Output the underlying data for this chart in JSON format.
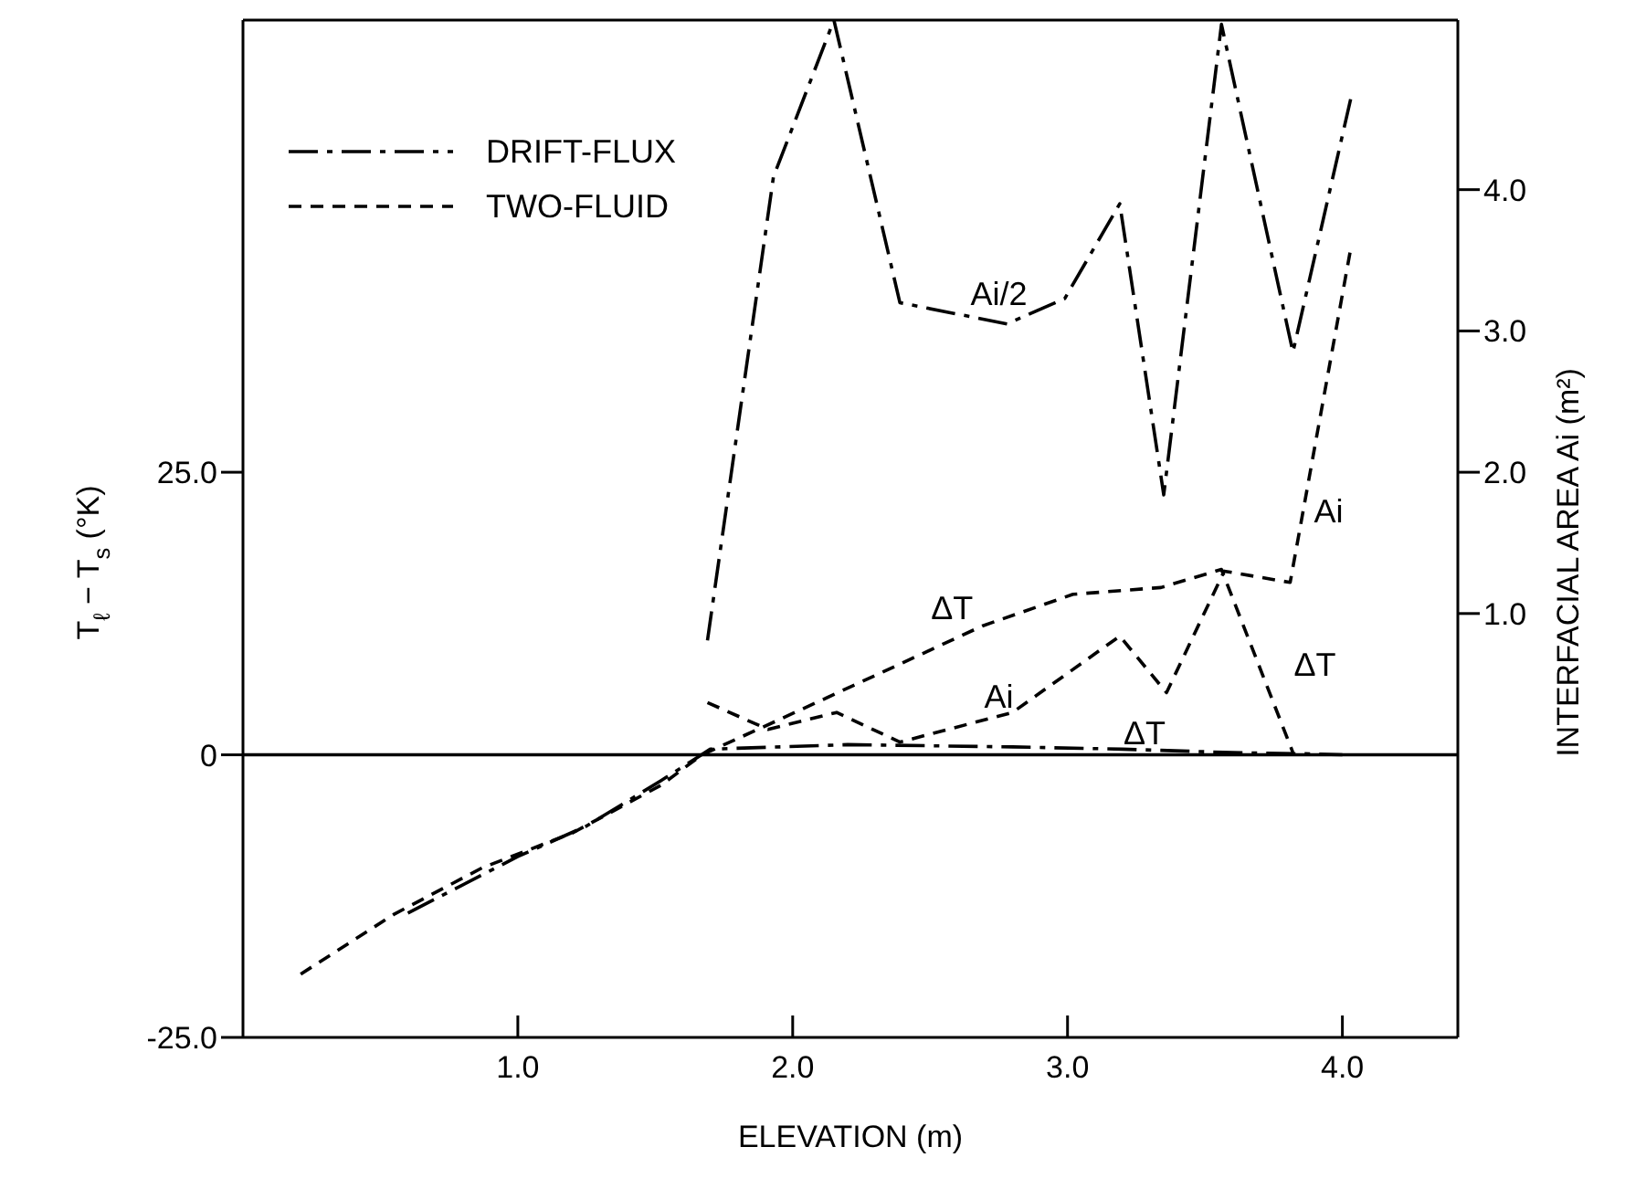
{
  "chart_data": {
    "type": "line",
    "xlabel": "ELEVATION (m)",
    "ylabel": "T$_{ℓ}$ − T$_{s}$ (°K)",
    "y2label": "INTERFACIAL AREA Ai (m²)",
    "xlim": [
      0,
      4.42
    ],
    "xticks": [
      {
        "value": 1,
        "label": "1.0"
      },
      {
        "value": 2,
        "label": "2.0"
      },
      {
        "value": 3,
        "label": "3.0"
      },
      {
        "value": 4,
        "label": "4.0"
      }
    ],
    "ylim": [
      -25,
      65
    ],
    "yticks": [
      {
        "value": -25,
        "label": "-25.0"
      },
      0,
      {
        "value": 25,
        "label": "25.0"
      }
    ],
    "y2lim": [
      -2,
      5.2
    ],
    "y2ticks": [
      {
        "value": 1,
        "label": "1.0"
      },
      {
        "value": 2,
        "label": "2.0"
      },
      {
        "value": 3,
        "label": "3.0"
      },
      {
        "value": 4,
        "label": "4.0"
      }
    ],
    "series": [
      {
        "name": "DRIFT-FLUX",
        "color": "#000000",
        "line_style": "dashdot",
        "axis": "y2",
        "x": [
          1.69,
          1.93,
          2.15,
          2.39,
          2.78,
          2.99,
          3.19,
          3.35,
          3.56,
          3.82,
          4.03
        ],
        "values": [
          0.81,
          4.09,
          5.2,
          3.2,
          3.05,
          3.23,
          3.9,
          1.84,
          5.17,
          2.85,
          4.64
        ]
      },
      {
        "color": "#000000",
        "line_style": "dashdot",
        "x": [
          0.6,
          1.0,
          1.25,
          1.52,
          1.7,
          2.2,
          2.8,
          3.2,
          3.6,
          3.85,
          4.0
        ],
        "values": [
          -14,
          -9,
          -6.3,
          -2.3,
          0.5,
          0.9,
          0.7,
          0.5,
          0.2,
          0.1,
          0
        ]
      },
      {
        "name": "TWO-FLUID",
        "color": "#000000",
        "line_style": "dashed",
        "x": [
          0.21,
          0.55,
          0.87,
          1.2,
          1.52,
          1.67,
          1.95,
          2.37,
          2.69,
          3.02,
          3.34,
          3.56,
          3.82
        ],
        "values": [
          -19.4,
          -14.1,
          -10,
          -6.9,
          -2.7,
          0,
          3.1,
          7.8,
          11.4,
          14.2,
          14.8,
          16.4,
          0.2
        ]
      },
      {
        "color": "#000000",
        "line_style": "dashed",
        "axis": "y2",
        "x": [
          1.69,
          1.91,
          2.16,
          2.39,
          2.8,
          3.19,
          3.36,
          3.57,
          3.81,
          4.03
        ],
        "values": [
          0.37,
          0.18,
          0.3,
          0.09,
          0.3,
          0.84,
          0.44,
          1.3,
          1.22,
          3.58
        ]
      }
    ],
    "ref_lines": [
      {
        "axis": "y",
        "value": 0,
        "color": "#000000",
        "line_style": "solid"
      }
    ],
    "annotations": [
      "Ai/2",
      "Ai",
      "ΔT",
      "Ai",
      "ΔT",
      "ΔT"
    ],
    "legend": "top left"
  }
}
